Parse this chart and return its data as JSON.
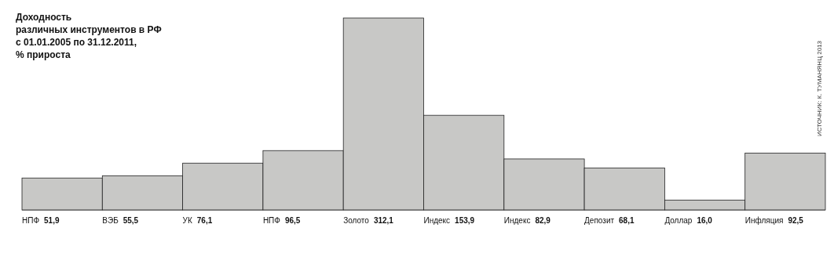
{
  "chart_data": {
    "type": "bar",
    "title": "Доходность\nразличных инструментов в РФ\nс 01.01.2005 по 31.12.2011,\n% прироста",
    "categories": [
      "НПФ",
      "ВЭБ",
      "УК",
      "НПФ",
      "Золото",
      "Индекс",
      "Индекс",
      "Депозит",
      "Доллар",
      "Инфляция"
    ],
    "values": [
      51.9,
      55.5,
      76.1,
      96.5,
      312.1,
      153.9,
      82.9,
      68.1,
      16.0,
      92.5
    ],
    "value_labels": [
      "51,9",
      "55,5",
      "76,1",
      "96,5",
      "312,1",
      "153,9",
      "82,9",
      "68,1",
      "16,0",
      "92,5"
    ],
    "color": "#c8c8c6",
    "annotations": [
      "ИСТОЧНИК: К. ТУМАНЯНЦ 2013"
    ]
  }
}
